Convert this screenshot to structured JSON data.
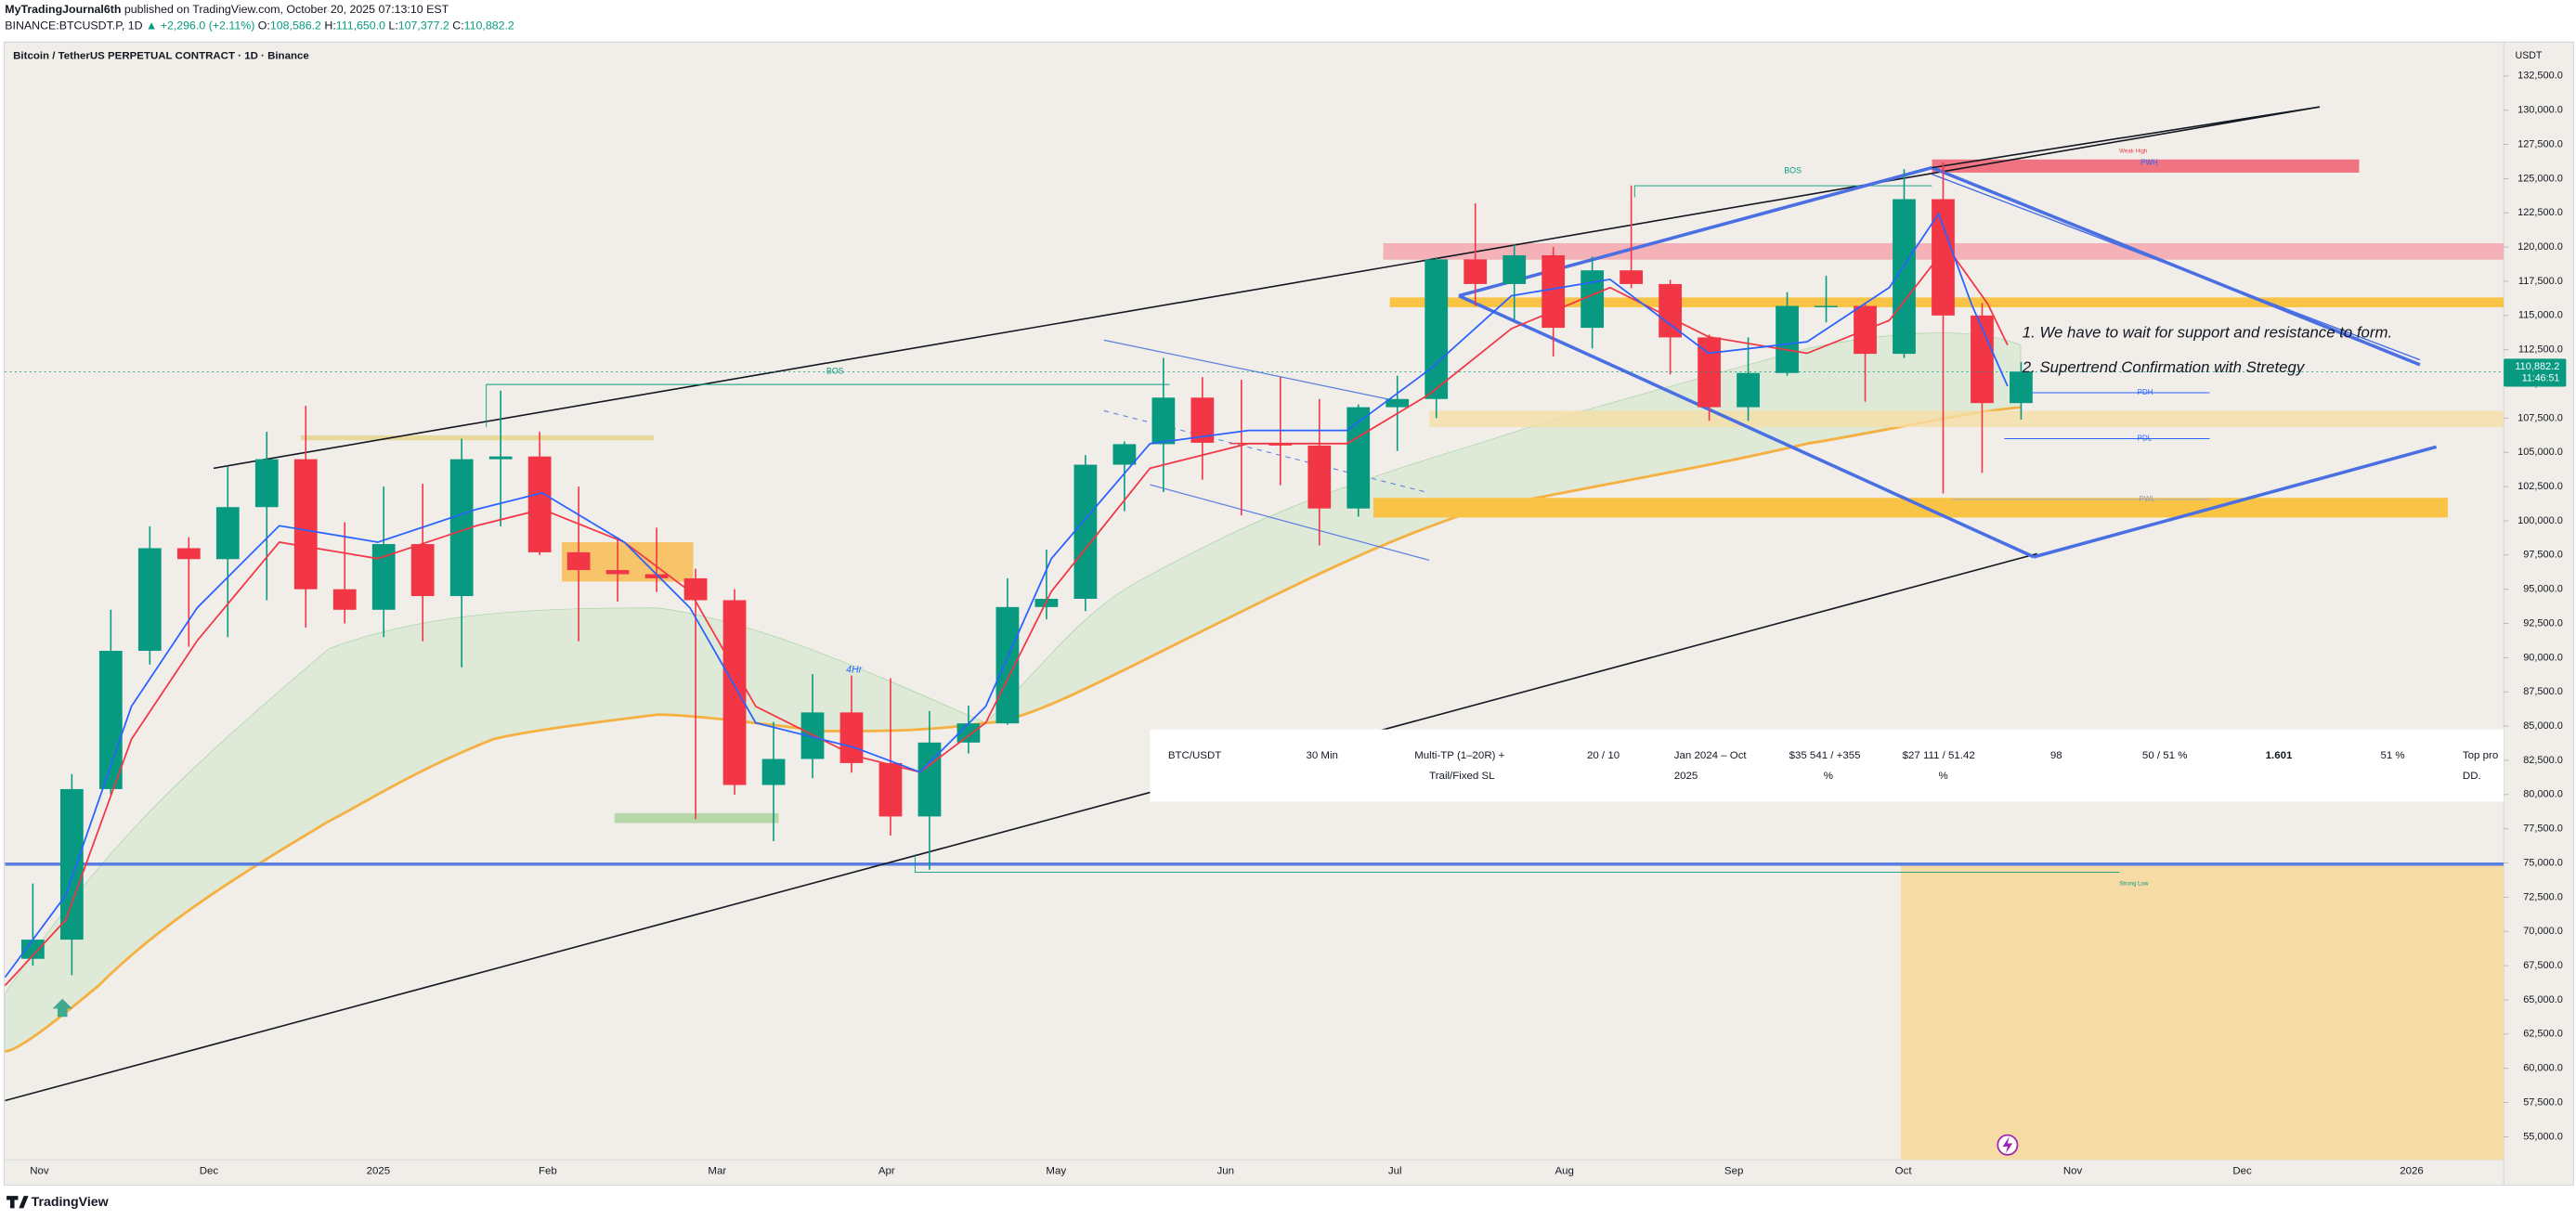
{
  "header": {
    "author": "MyTradingJournal6th",
    "published": "published on TradingView.com, October 20, 2025 07:13:10 EST",
    "symbol": "BINANCE:BTCUSDT.P, 1D",
    "change": "▲ +2,296.0 (+2.11%)",
    "ohlc": [
      {
        "key": "O:",
        "value": "108,586.2"
      },
      {
        "key": "H:",
        "value": "111,650.0"
      },
      {
        "key": "L:",
        "value": "107,377.2"
      },
      {
        "key": "C:",
        "value": "110,882.2"
      }
    ]
  },
  "chart_data": {
    "type": "candlestick",
    "title": "Bitcoin / TetherUS PERPETUAL CONTRACT · 1D · Binance",
    "currency": "USDT",
    "up_color": "#089981",
    "down_color": "#f23645",
    "x_labels": [
      "Nov",
      "Dec",
      "2025",
      "Feb",
      "Mar",
      "Apr",
      "May",
      "Jun",
      "Jul",
      "Aug",
      "Sep",
      "Oct",
      "Nov",
      "Dec",
      "2026"
    ],
    "series": {
      "open": [
        68000,
        69400,
        80400,
        90500,
        98000,
        97200,
        101000,
        104500,
        95000,
        93500,
        98300,
        94500,
        104500,
        104700,
        97700,
        96400,
        96100,
        95800,
        94200,
        80700,
        82600,
        86000,
        82300,
        78400,
        83800,
        85200,
        93700,
        94300,
        104100,
        105600,
        109000,
        105700,
        105600,
        105500,
        100900,
        108300,
        108900,
        119100,
        117300,
        119400,
        114100,
        118300,
        117300,
        113400,
        108300,
        110800,
        115700,
        115700,
        112200,
        123500,
        115000,
        108600
      ],
      "high": [
        73500,
        81500,
        93500,
        99600,
        98800,
        104000,
        106500,
        108400,
        99900,
        102500,
        102700,
        106000,
        109500,
        106500,
        102500,
        98800,
        99500,
        96500,
        95000,
        85300,
        88800,
        88700,
        88500,
        86100,
        86500,
        95800,
        97900,
        104800,
        105800,
        111900,
        110500,
        110300,
        110500,
        108900,
        108500,
        110600,
        119200,
        123200,
        120200,
        120000,
        119300,
        124500,
        117600,
        113600,
        113400,
        116700,
        117900,
        115900,
        125700,
        126200,
        115900,
        111600
      ],
      "low": [
        67500,
        66800,
        80000,
        89500,
        90800,
        91500,
        94200,
        92200,
        92500,
        91500,
        91200,
        89300,
        99600,
        97500,
        91200,
        94100,
        94800,
        78200,
        80000,
        76600,
        81200,
        81600,
        77000,
        74500,
        83000,
        85100,
        92800,
        93400,
        100700,
        102100,
        103000,
        100400,
        102600,
        98200,
        100300,
        105100,
        107500,
        115700,
        114700,
        112000,
        112600,
        117000,
        110700,
        107300,
        107300,
        110600,
        114500,
        108700,
        111900,
        102000,
        103500,
        107400
      ],
      "close": [
        69400,
        80400,
        90500,
        98000,
        97200,
        101000,
        104500,
        95000,
        93500,
        98300,
        94500,
        104500,
        104700,
        97700,
        96400,
        96100,
        95800,
        94200,
        80700,
        82600,
        86000,
        82300,
        78400,
        83800,
        85200,
        93700,
        94300,
        104100,
        105600,
        109000,
        105700,
        105600,
        105500,
        100900,
        108300,
        108900,
        119100,
        117300,
        119400,
        114100,
        118300,
        117300,
        113400,
        108300,
        110800,
        115700,
        115700,
        112200,
        123500,
        115000,
        108600,
        110900
      ]
    },
    "ylim": [
      51640,
      134680
    ],
    "yticks": [
      {
        "value": 55000,
        "label": "55,000.0"
      },
      {
        "value": 57500,
        "label": "57,500.0"
      },
      {
        "value": 60000,
        "label": "60,000.0"
      },
      {
        "value": 62500,
        "label": "62,500.0"
      },
      {
        "value": 65000,
        "label": "65,000.0"
      },
      {
        "value": 67500,
        "label": "67,500.0"
      },
      {
        "value": 70000,
        "label": "70,000.0"
      },
      {
        "value": 72500,
        "label": "72,500.0"
      },
      {
        "value": 75000,
        "label": "75,000.0"
      },
      {
        "value": 77500,
        "label": "77,500.0"
      },
      {
        "value": 80000,
        "label": "80,000.0"
      },
      {
        "value": 82500,
        "label": "82,500.0"
      },
      {
        "value": 85000,
        "label": "85,000.0"
      },
      {
        "value": 87500,
        "label": "87,500.0"
      },
      {
        "value": 90000,
        "label": "90,000.0"
      },
      {
        "value": 92500,
        "label": "92,500.0"
      },
      {
        "value": 95000,
        "label": "95,000.0"
      },
      {
        "value": 97500,
        "label": "97,500.0"
      },
      {
        "value": 100000,
        "label": "100,000.0"
      },
      {
        "value": 102500,
        "label": "102,500.0"
      },
      {
        "value": 105000,
        "label": "105,000.0"
      },
      {
        "value": 107500,
        "label": "107,500.0"
      },
      {
        "value": 110000,
        "label": "110,000.0"
      },
      {
        "value": 112500,
        "label": "112,500.0"
      },
      {
        "value": 115000,
        "label": "115,000.0"
      },
      {
        "value": 117500,
        "label": "117,500.0"
      },
      {
        "value": 120000,
        "label": "120,000.0"
      },
      {
        "value": 122500,
        "label": "122,500.0"
      },
      {
        "value": 125000,
        "label": "125,000.0"
      },
      {
        "value": 127500,
        "label": "127,500.0"
      },
      {
        "value": 130000,
        "label": "130,000.0"
      },
      {
        "value": 132500,
        "label": "132,500.0"
      }
    ],
    "last_price": {
      "value": 110882.2,
      "label": "110,882.2"
    },
    "countdown": "11:46:51",
    "annotations": [
      "BOS",
      "BOS",
      "Weak High",
      "PWH",
      "PDH",
      "PDL",
      "PWL",
      "Strong Low",
      "4Hr",
      "1. We have to wait for support and resistance to form.",
      "2. Supertrend Confirmation with Stretegy"
    ]
  },
  "table": {
    "cells": [
      [
        "BTC/USDT"
      ],
      [
        "30 Min"
      ],
      [
        "Multi-TP (1–20R) +",
        "Trail/Fixed SL"
      ],
      [
        "20 / 10"
      ],
      [
        "Jan 2024 – Oct",
        "2025"
      ],
      [
        "$35 541 / +355",
        "%"
      ],
      [
        "$27 111 / 51.42",
        "%"
      ],
      [
        "98"
      ],
      [
        "50 / 51 %"
      ],
      [
        "1.601"
      ],
      [
        "51 %"
      ],
      [
        "Top pro",
        "DD."
      ]
    ]
  },
  "footer": "TradingView"
}
